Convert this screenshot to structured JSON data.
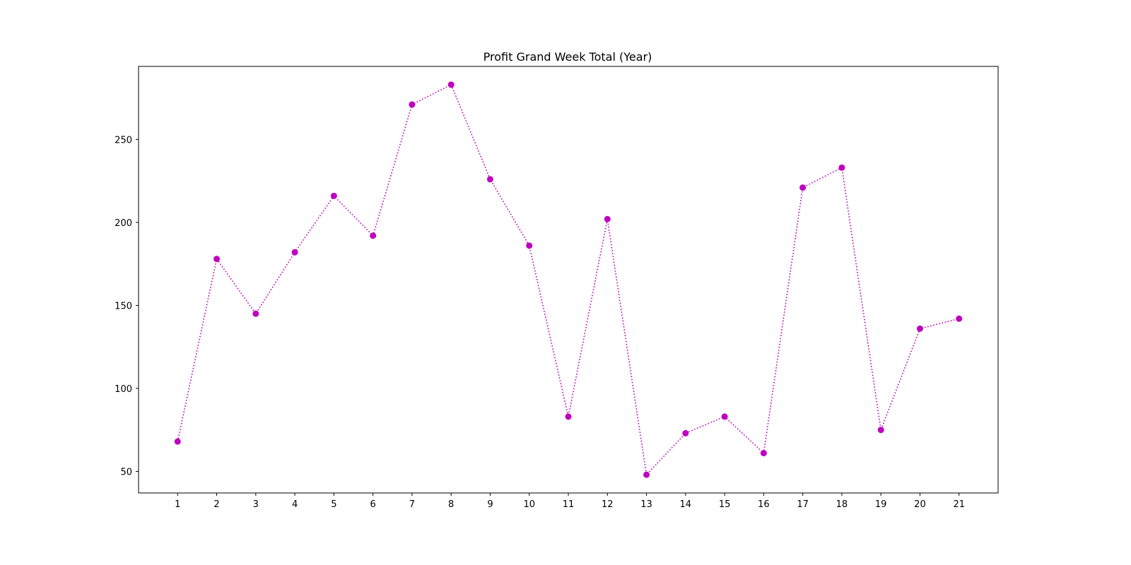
{
  "chart_data": {
    "type": "line",
    "title": "Profit Grand Week Total (Year)",
    "xlabel": "",
    "ylabel": "",
    "x": [
      1,
      2,
      3,
      4,
      5,
      6,
      7,
      8,
      9,
      10,
      11,
      12,
      13,
      14,
      15,
      16,
      17,
      18,
      19,
      20,
      21
    ],
    "y": [
      68,
      178,
      145,
      182,
      216,
      192,
      271,
      283,
      226,
      186,
      83,
      202,
      48,
      73,
      83,
      61,
      221,
      233,
      75,
      136,
      142
    ],
    "xlim": [
      0,
      22
    ],
    "ylim": [
      37,
      294
    ],
    "yticks": [
      50,
      100,
      150,
      200,
      250
    ],
    "grid": false,
    "line_style": "dotted",
    "marker": "circle",
    "color": "#bf00bf"
  }
}
